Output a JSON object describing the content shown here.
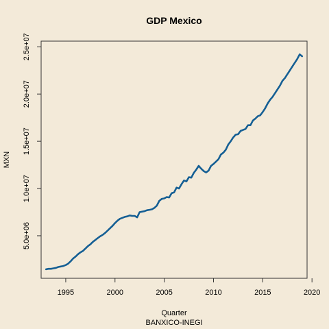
{
  "chart_data": {
    "type": "line",
    "title": "GDP Mexico",
    "xlabel": "Quarter",
    "ylabel": "MXN",
    "caption": "BANXICO-INEGI",
    "xlim": [
      1992.5,
      2019.5
    ],
    "ylim": [
      500000,
      25600000
    ],
    "x_ticks": [
      1995,
      2000,
      2005,
      2010,
      2015,
      2020
    ],
    "x_tick_labels": [
      "1995",
      "2000",
      "2005",
      "2010",
      "2015",
      "2020"
    ],
    "y_ticks": [
      5000000,
      10000000,
      15000000,
      20000000,
      25000000
    ],
    "y_tick_labels": [
      "5.0e+06",
      "1.0e+07",
      "1.5e+07",
      "2.0e+07",
      "2.5e+07"
    ],
    "grid": false,
    "line_color": "#155f94",
    "background": "#f3ead9",
    "series": [
      {
        "x": [
          1993.0,
          1993.25,
          1993.5,
          1993.75,
          1994.0,
          1994.25,
          1994.5,
          1994.75,
          1995.0,
          1995.25,
          1995.5,
          1995.75,
          1996.0,
          1996.25,
          1996.5,
          1996.75,
          1997.0,
          1997.25,
          1997.5,
          1997.75,
          1998.0,
          1998.25,
          1998.5,
          1998.75,
          1999.0,
          1999.25,
          1999.5,
          1999.75,
          2000.0,
          2000.25,
          2000.5,
          2000.75,
          2001.0,
          2001.25,
          2001.5,
          2001.75,
          2002.0,
          2002.25,
          2002.5,
          2002.75,
          2003.0,
          2003.25,
          2003.5,
          2003.75,
          2004.0,
          2004.25,
          2004.5,
          2004.75,
          2005.0,
          2005.25,
          2005.5,
          2005.75,
          2006.0,
          2006.25,
          2006.5,
          2006.75,
          2007.0,
          2007.25,
          2007.5,
          2007.75,
          2008.0,
          2008.25,
          2008.5,
          2008.75,
          2009.0,
          2009.25,
          2009.5,
          2009.75,
          2010.0,
          2010.25,
          2010.5,
          2010.75,
          2011.0,
          2011.25,
          2011.5,
          2011.75,
          2012.0,
          2012.25,
          2012.5,
          2012.75,
          2013.0,
          2013.25,
          2013.5,
          2013.75,
          2014.0,
          2014.25,
          2014.5,
          2014.75,
          2015.0,
          2015.25,
          2015.5,
          2015.75,
          2016.0,
          2016.25,
          2016.5,
          2016.75,
          2017.0,
          2017.25,
          2017.5,
          2017.75,
          2018.0,
          2018.25,
          2018.5,
          2018.75,
          2019.0
        ],
        "values": [
          1450000,
          1500000,
          1500000,
          1550000,
          1600000,
          1700000,
          1750000,
          1800000,
          1900000,
          2050000,
          2300000,
          2600000,
          2800000,
          3050000,
          3250000,
          3400000,
          3650000,
          3900000,
          4100000,
          4350000,
          4550000,
          4750000,
          4950000,
          5100000,
          5300000,
          5550000,
          5800000,
          6050000,
          6350000,
          6600000,
          6800000,
          6900000,
          7000000,
          7050000,
          7150000,
          7100000,
          7100000,
          6950000,
          7500000,
          7550000,
          7600000,
          7700000,
          7750000,
          7800000,
          7950000,
          8200000,
          8700000,
          8900000,
          8950000,
          9100000,
          9050000,
          9500000,
          9600000,
          10100000,
          10000000,
          10450000,
          10850000,
          10750000,
          11200000,
          11150000,
          11650000,
          12000000,
          12400000,
          12100000,
          11850000,
          11700000,
          11900000,
          12400000,
          12600000,
          12850000,
          13100000,
          13600000,
          13800000,
          14100000,
          14650000,
          15000000,
          15400000,
          15700000,
          15750000,
          16100000,
          16200000,
          16300000,
          16700000,
          16700000,
          17200000,
          17400000,
          17650000,
          17750000,
          18100000,
          18500000,
          19000000,
          19400000,
          19700000,
          20100000,
          20500000,
          20900000,
          21400000,
          21700000,
          22100000,
          22500000,
          22900000,
          23300000,
          23700000,
          24200000,
          24000000
        ]
      }
    ]
  }
}
